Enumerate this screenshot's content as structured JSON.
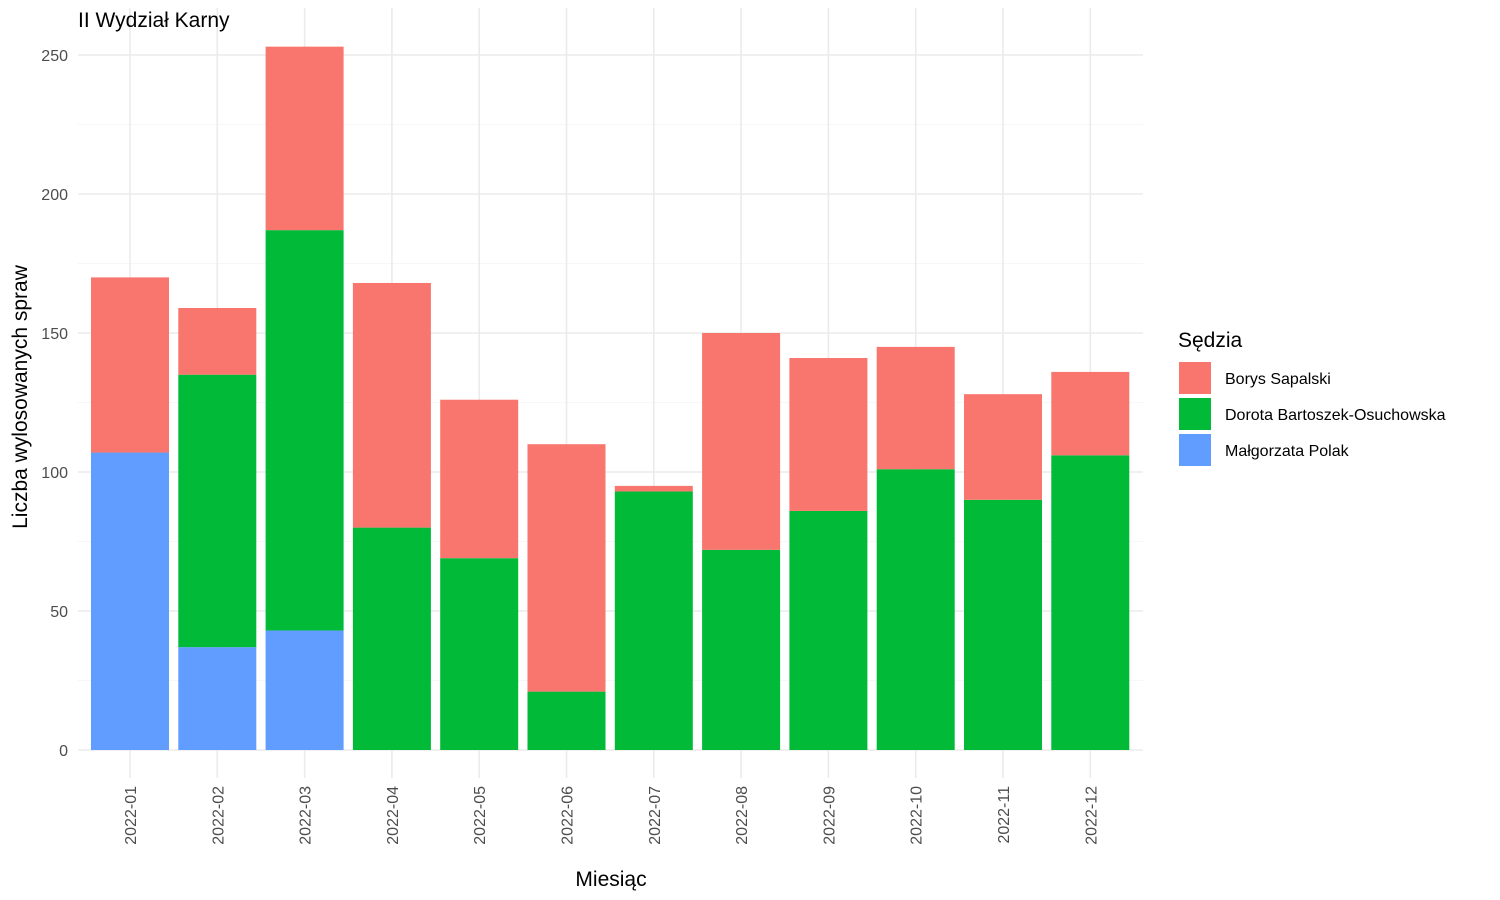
{
  "chart_data": {
    "type": "bar",
    "stacked": true,
    "title": "II Wydział Karny",
    "xlabel": "Miesiąc",
    "ylabel": "Liczba wylosowanych spraw",
    "ylim": [
      0,
      260
    ],
    "yticks": [
      0,
      50,
      100,
      150,
      200,
      250
    ],
    "grid": true,
    "legend_position": "right",
    "legend_title": "Sędzia",
    "categories": [
      "2022-01",
      "2022-02",
      "2022-03",
      "2022-04",
      "2022-05",
      "2022-06",
      "2022-07",
      "2022-08",
      "2022-09",
      "2022-10",
      "2022-11",
      "2022-12"
    ],
    "series": [
      {
        "name": "Borys Sapalski",
        "color": "#F8766D",
        "values": [
          63,
          24,
          66,
          88,
          57,
          89,
          2,
          78,
          55,
          44,
          38,
          30
        ]
      },
      {
        "name": "Dorota Bartoszek-Osuchowska",
        "color": "#00BA38",
        "values": [
          0,
          98,
          144,
          80,
          69,
          21,
          93,
          72,
          86,
          101,
          90,
          106
        ]
      },
      {
        "name": "Małgorzata Polak",
        "color": "#619CFF",
        "values": [
          107,
          37,
          43,
          0,
          0,
          0,
          0,
          0,
          0,
          0,
          0,
          0
        ]
      }
    ]
  }
}
